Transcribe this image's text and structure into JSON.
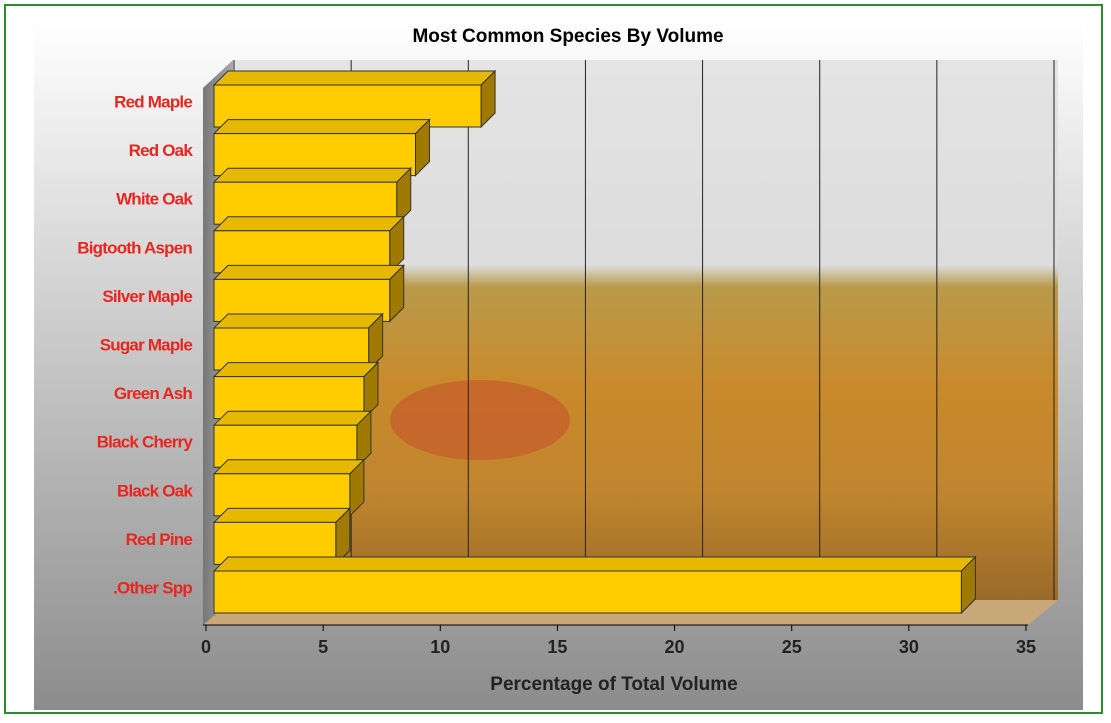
{
  "chart_data": {
    "type": "bar",
    "title": "Most Common Species By Volume",
    "x_label": "Percentage of Total Volume",
    "categories": [
      "Red Maple",
      "Red Oak",
      "White Oak",
      "Bigtooth Aspen",
      "Silver Maple",
      "Sugar Maple",
      "Green Ash",
      "Black Cherry",
      "Black Oak",
      "Red Pine",
      ".Other Spp"
    ],
    "values": [
      11.4,
      8.6,
      7.8,
      7.5,
      7.5,
      6.6,
      6.4,
      6.1,
      5.8,
      5.2,
      31.9
    ],
    "color": "#ffcc00",
    "xlim": [
      0,
      35
    ],
    "xticks": [
      0,
      5,
      10,
      15,
      20,
      25,
      30,
      35
    ],
    "grid": true
  }
}
